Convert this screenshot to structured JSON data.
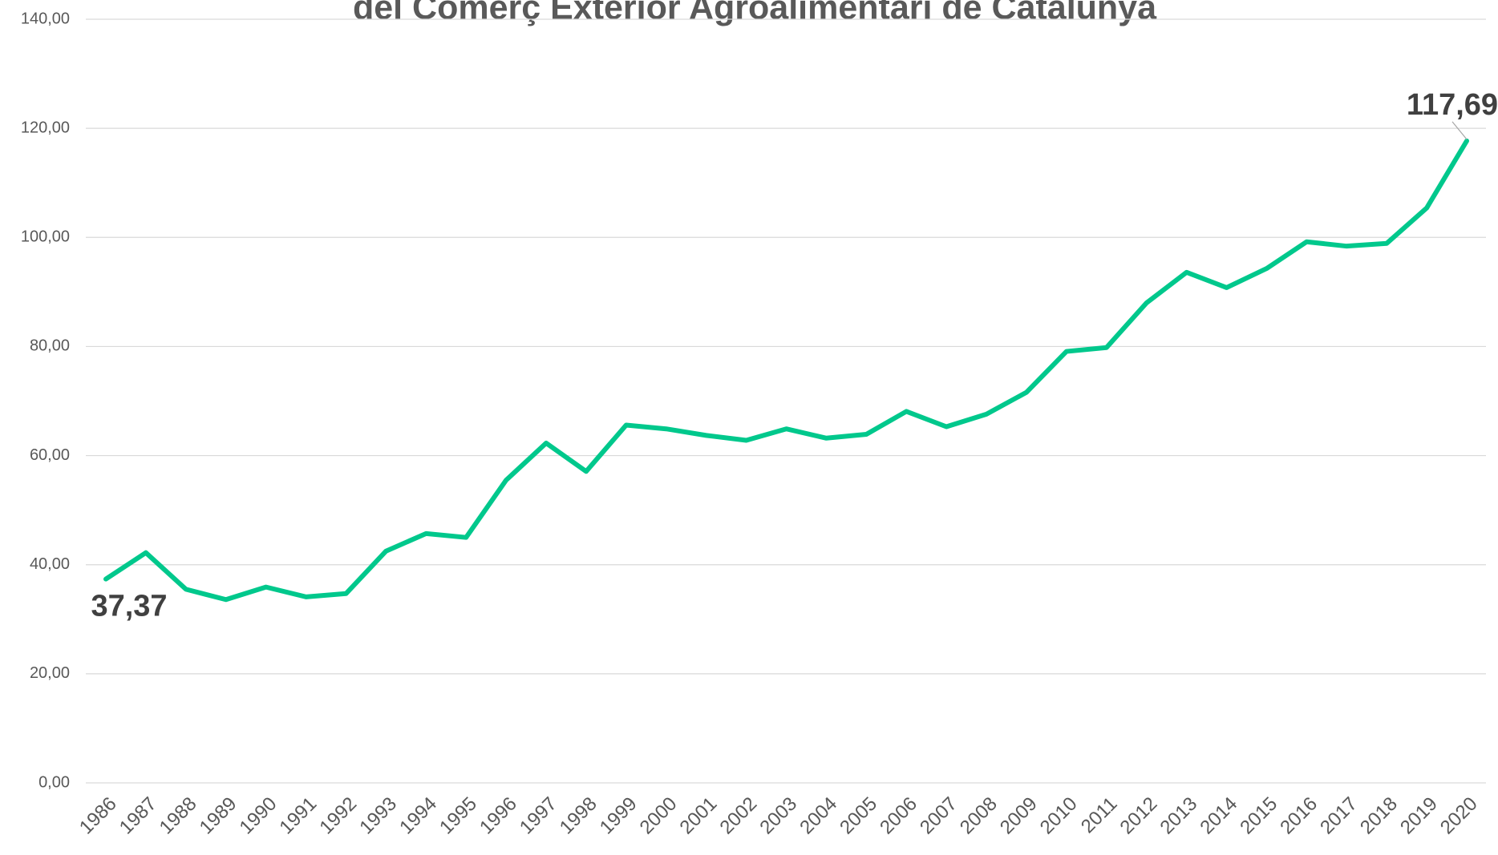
{
  "chart_data": {
    "type": "line",
    "title": "del Comerç Exterior Agroalimentari de Catalunya",
    "categories": [
      "1986",
      "1987",
      "1988",
      "1989",
      "1990",
      "1991",
      "1992",
      "1993",
      "1994",
      "1995",
      "1996",
      "1997",
      "1998",
      "1999",
      "2000",
      "2001",
      "2002",
      "2003",
      "2004",
      "2005",
      "2006",
      "2007",
      "2008",
      "2009",
      "2010",
      "2011",
      "2012",
      "2013",
      "2014",
      "2015",
      "2016",
      "2017",
      "2018",
      "2019",
      "2020"
    ],
    "series": [
      {
        "color": "#00c88c",
        "values": [
          37.37,
          42.2,
          35.5,
          33.6,
          35.9,
          34.1,
          34.7,
          42.5,
          45.7,
          45.0,
          55.5,
          62.3,
          57.1,
          65.6,
          64.9,
          63.7,
          62.8,
          64.9,
          63.2,
          63.9,
          68.1,
          65.3,
          67.6,
          71.6,
          79.1,
          79.8,
          88.0,
          93.6,
          90.8,
          94.3,
          99.2,
          98.4,
          98.9,
          105.4,
          117.69
        ],
        "value_labels": [
          "37,37",
          null,
          null,
          null,
          null,
          null,
          null,
          null,
          null,
          null,
          null,
          null,
          null,
          null,
          null,
          null,
          null,
          null,
          null,
          null,
          null,
          null,
          null,
          null,
          null,
          null,
          null,
          null,
          null,
          null,
          null,
          null,
          null,
          null,
          "117,69"
        ]
      }
    ],
    "ylim": [
      0,
      140
    ],
    "yticks": [
      {
        "value": 0,
        "label": "0,00"
      },
      {
        "value": 20,
        "label": "20,00"
      },
      {
        "value": 40,
        "label": "40,00"
      },
      {
        "value": 60,
        "label": "60,00"
      },
      {
        "value": 80,
        "label": "80,00"
      },
      {
        "value": 100,
        "label": "100,00"
      },
      {
        "value": 120,
        "label": "120,00"
      },
      {
        "value": 140,
        "label": "140,00"
      }
    ],
    "grid": true
  }
}
